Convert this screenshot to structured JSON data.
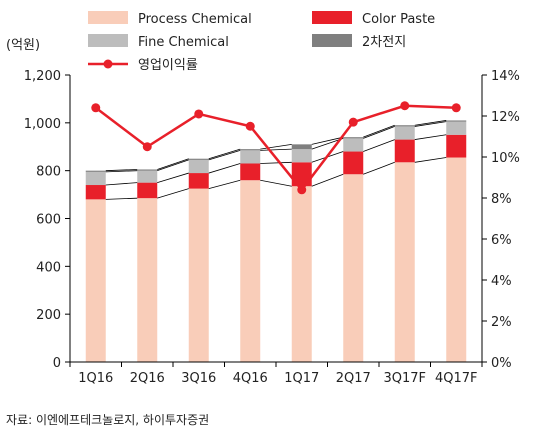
{
  "chart_data": {
    "type": "bar",
    "stacked": true,
    "categories": [
      "1Q16",
      "2Q16",
      "3Q16",
      "4Q16",
      "1Q17",
      "2Q17",
      "3Q17F",
      "4Q17F"
    ],
    "y_left": {
      "unit_label": "(억원)",
      "ylim": [
        0,
        1200
      ],
      "ticks": [
        "0",
        "200",
        "400",
        "600",
        "800",
        "1,000",
        "1,200"
      ],
      "tick_values": [
        0,
        200,
        400,
        600,
        800,
        1000,
        1200
      ]
    },
    "y_right": {
      "ylim": [
        0,
        14
      ],
      "ticks": [
        "0%",
        "2%",
        "4%",
        "6%",
        "8%",
        "10%",
        "12%",
        "14%"
      ],
      "tick_values": [
        0,
        2,
        4,
        6,
        8,
        10,
        12,
        14
      ]
    },
    "series": [
      {
        "name": "Process Chemical",
        "color": "#f9cdb9",
        "values": [
          680,
          685,
          725,
          760,
          735,
          785,
          835,
          855
        ]
      },
      {
        "name": "Color Paste",
        "color": "#e8202a",
        "values": [
          60,
          65,
          65,
          70,
          100,
          95,
          95,
          95
        ]
      },
      {
        "name": "Fine Chemical",
        "color": "#bdbdbd",
        "values": [
          55,
          50,
          55,
          55,
          55,
          55,
          55,
          55
        ]
      },
      {
        "name": "2차전지",
        "color": "#7f7f7f",
        "values": [
          5,
          5,
          5,
          5,
          20,
          5,
          5,
          5
        ]
      }
    ],
    "line_series": {
      "name": "영업이익률",
      "color": "#e8202a",
      "axis": "right",
      "values": [
        12.4,
        10.5,
        12.1,
        11.5,
        8.4,
        11.7,
        12.5,
        12.4
      ]
    },
    "legend_position": "top",
    "grid": false,
    "source": "자료: 이엔에프테크놀로지, 하이투자증권"
  }
}
